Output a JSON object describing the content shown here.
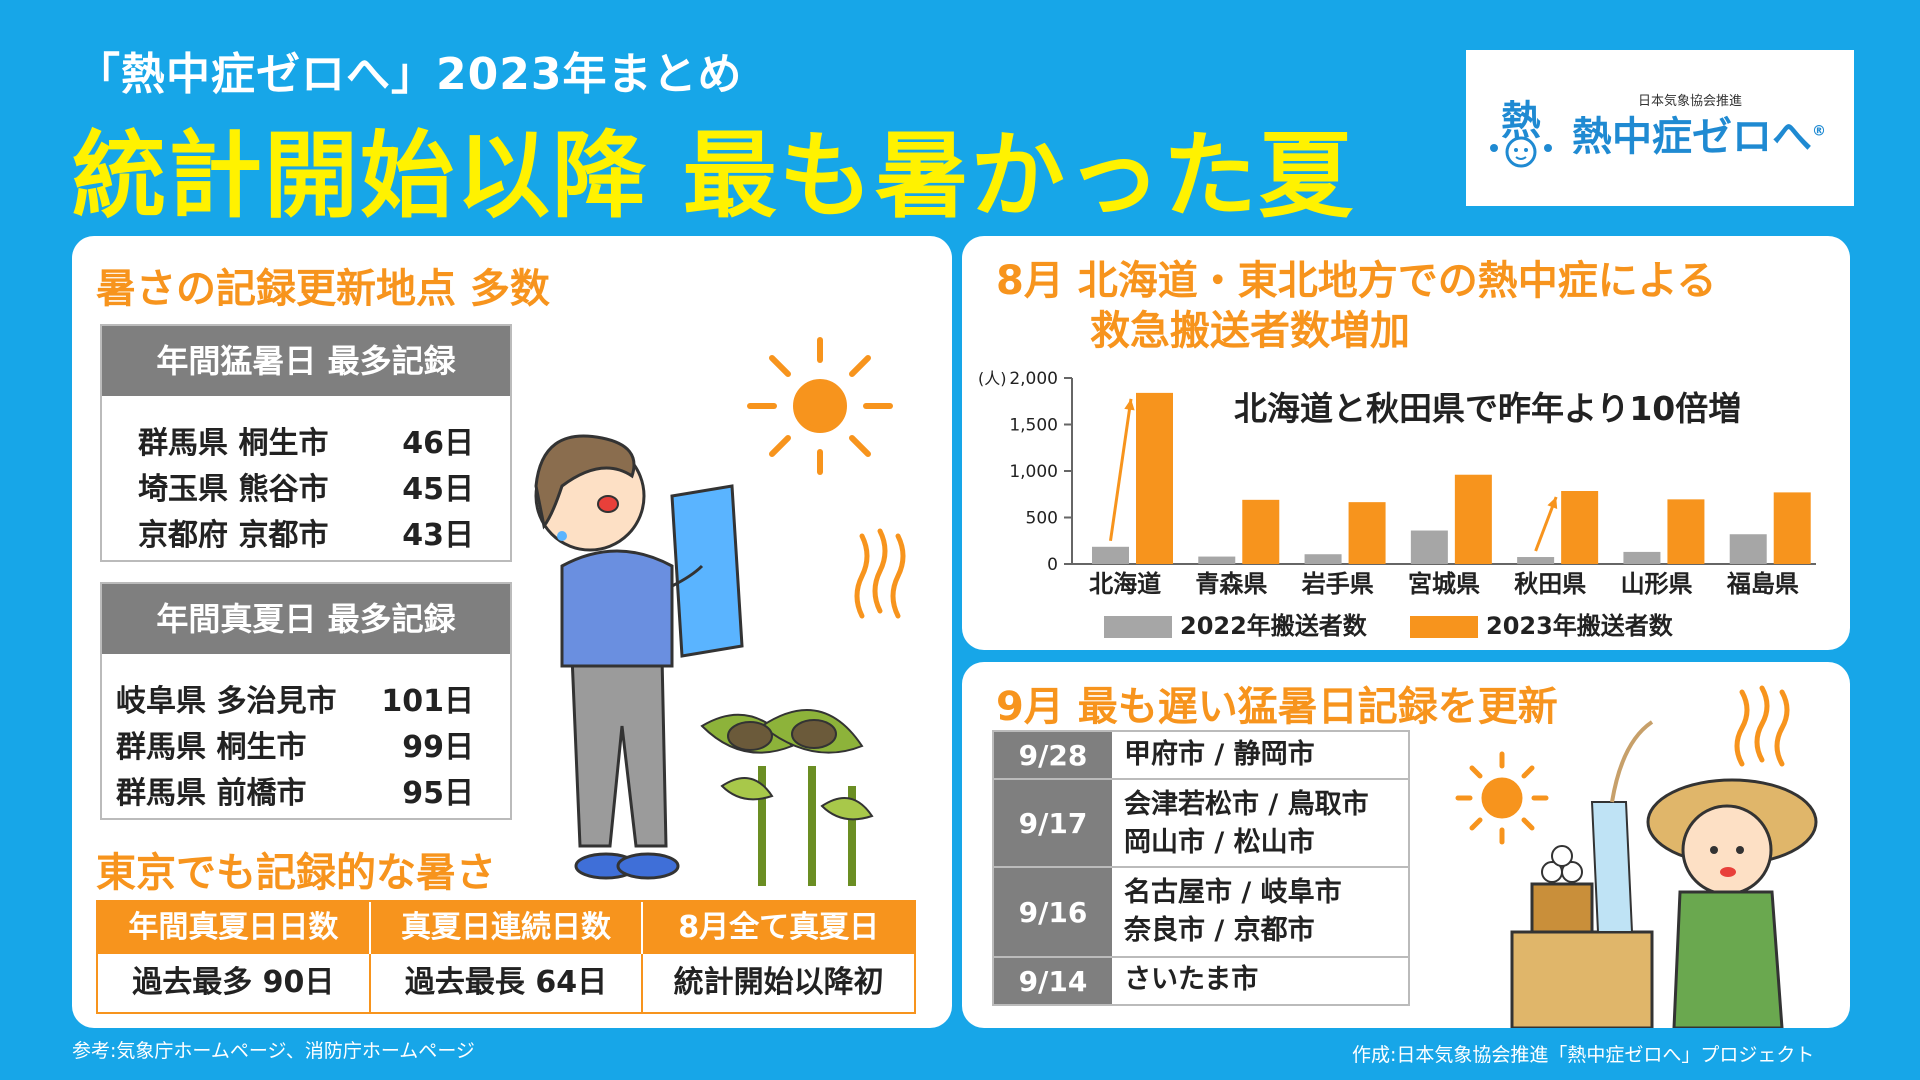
{
  "header": {
    "subtitle": "「熱中症ゼロへ」2023年まとめ",
    "title": "統計開始以降 最も暑かった夏"
  },
  "logo": {
    "org": "日本気象協会推進",
    "name": "熱中症ゼロへ",
    "registered": "®",
    "mark": "熱"
  },
  "records": {
    "heading": "暑さの記録更新地点 多数",
    "moshobi": {
      "title": "年間猛暑日 最多記録",
      "rows": [
        {
          "place": "群馬県 桐生市",
          "days": "46日"
        },
        {
          "place": "埼玉県 熊谷市",
          "days": "45日"
        },
        {
          "place": "京都府 京都市",
          "days": "43日"
        }
      ]
    },
    "manatsubi": {
      "title": "年間真夏日 最多記録",
      "rows": [
        {
          "place": "岐阜県 多治見市",
          "days": "101日"
        },
        {
          "place": "群馬県 桐生市",
          "days": "99日"
        },
        {
          "place": "群馬県 前橋市",
          "days": "95日"
        }
      ]
    }
  },
  "tokyo": {
    "heading": "東京でも記録的な暑さ",
    "headers": [
      "年間真夏日日数",
      "真夏日連続日数",
      "8月全て真夏日"
    ],
    "values": [
      "過去最多 90日",
      "過去最長 64日",
      "統計開始以降初"
    ]
  },
  "august": {
    "heading_line1": "8月 北海道・東北地方での熱中症による",
    "heading_line2": "救急搬送者数増加",
    "annotation": "北海道と秋田県で昨年より10倍増"
  },
  "chart_data": {
    "type": "bar",
    "categories": [
      "北海道",
      "青森県",
      "岩手県",
      "宮城県",
      "秋田県",
      "山形県",
      "福島県"
    ],
    "series": [
      {
        "name": "2022年搬送者数",
        "color": "#a6a6a6",
        "values": [
          185,
          80,
          105,
          360,
          75,
          130,
          320
        ]
      },
      {
        "name": "2023年搬送者数",
        "color": "#f7941d",
        "values": [
          1840,
          690,
          665,
          960,
          785,
          695,
          770
        ]
      }
    ],
    "ylabel": "(人)",
    "yticks": [
      "0",
      "500",
      "1,000",
      "1,500",
      "2,000"
    ],
    "ylim": [
      0,
      2000
    ],
    "annotation": "北海道と秋田県で昨年より10倍増",
    "legend": "bottom"
  },
  "september": {
    "heading": "9月 最も遅い猛暑日記録を更新",
    "rows": [
      {
        "date": "9/28",
        "line1": "甲府市 / 静岡市",
        "line2": ""
      },
      {
        "date": "9/17",
        "line1": "会津若松市 / 鳥取市",
        "line2": "岡山市 / 松山市"
      },
      {
        "date": "9/16",
        "line1": "名古屋市 / 岐阜市",
        "line2": "奈良市 / 京都市"
      },
      {
        "date": "9/14",
        "line1": "さいたま市",
        "line2": ""
      }
    ]
  },
  "footer": {
    "source": "参考:気象庁ホームページ、消防庁ホームページ",
    "credit": "作成:日本気象協会推進「熱中症ゼロへ」プロジェクト"
  }
}
